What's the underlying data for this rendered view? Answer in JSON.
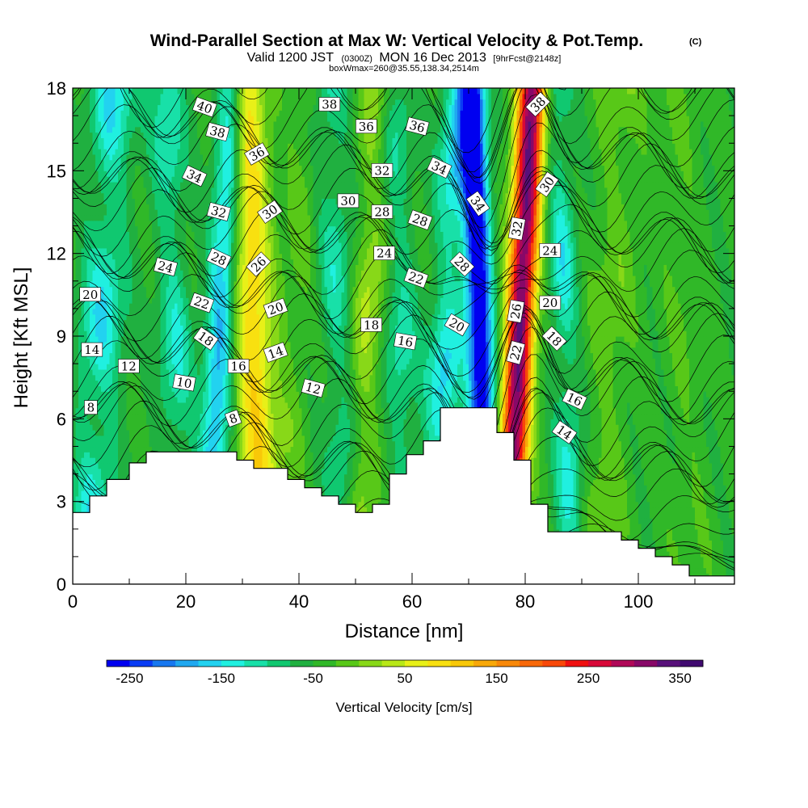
{
  "header": {
    "title": "Wind-Parallel Section at Max W: Vertical Velocity & Pot.Temp.",
    "copyright": "(C)",
    "valid_prefix": "Valid 1200 JST",
    "valid_zulu": "(0300Z)",
    "valid_date": "MON 16 Dec 2013",
    "forecast": "[9hrFcst@2148z]",
    "box_info": "boxWmax=260@35.55,138.34,2514m"
  },
  "chart_data": {
    "type": "heatmap",
    "xlabel": "Distance [nm]",
    "ylabel": "Height [Kft MSL]",
    "xlim": [
      0,
      117
    ],
    "ylim": [
      0,
      18
    ],
    "x_ticks": [
      "0",
      "20",
      "40",
      "60",
      "80",
      "100"
    ],
    "y_ticks": [
      "0",
      "3",
      "6",
      "9",
      "12",
      "15",
      "18"
    ],
    "x_tick_values": [
      0,
      20,
      40,
      60,
      80,
      100
    ],
    "y_tick_values": [
      0,
      3,
      6,
      9,
      12,
      15,
      18
    ],
    "colorbar": {
      "label": "Vertical Velocity [cm/s]",
      "tick_labels": [
        "-250",
        "-150",
        "-50",
        "50",
        "150",
        "250",
        "350"
      ],
      "tick_values": [
        -250,
        -150,
        -50,
        50,
        150,
        250,
        350
      ],
      "range": [
        -275,
        375
      ],
      "colors": [
        "#0000f0",
        "#0a3cf5",
        "#1878f0",
        "#20a8f0",
        "#22d2f0",
        "#20f0e0",
        "#18e0a8",
        "#10c870",
        "#20b040",
        "#30b828",
        "#58c818",
        "#88d818",
        "#b8e818",
        "#e8f018",
        "#f8e010",
        "#f8c808",
        "#f8a808",
        "#f88808",
        "#f86808",
        "#f84808",
        "#f01010",
        "#d80838",
        "#b00858",
        "#880868",
        "#58107a",
        "#400a70"
      ]
    },
    "velocity_field": {
      "background_cm_s": -45,
      "features": [
        {
          "x": 5,
          "width": 4,
          "w": -100
        },
        {
          "x": 18,
          "width": 3,
          "w": -80
        },
        {
          "x": 26,
          "width": 2.5,
          "w": -130
        },
        {
          "x": 32,
          "width": 3.5,
          "w": 140
        },
        {
          "x": 39,
          "width": 3,
          "w": 30
        },
        {
          "x": 47,
          "width": 3,
          "w": -70
        },
        {
          "x": 52,
          "width": 3,
          "w": 80
        },
        {
          "x": 58,
          "width": 3,
          "w": -70
        },
        {
          "x": 66,
          "width": 3,
          "w": -110
        },
        {
          "x": 72,
          "width": 2.2,
          "w": -250
        },
        {
          "x": 79,
          "width": 2.5,
          "w": 370
        },
        {
          "x": 87,
          "width": 2.5,
          "w": -90
        },
        {
          "x": 95,
          "width": 4,
          "w": 40
        },
        {
          "x": 108,
          "width": 4,
          "w": 20
        }
      ]
    },
    "terrain_kft": {
      "x": [
        0,
        3,
        3,
        6,
        6,
        10,
        10,
        13,
        13,
        17,
        17,
        29,
        29,
        32,
        32,
        38,
        38,
        41,
        41,
        44,
        44,
        47,
        47,
        50,
        50,
        53,
        53,
        56,
        56,
        59,
        59,
        62,
        62,
        65,
        65,
        69,
        69,
        75,
        75,
        78,
        78,
        81,
        81,
        84,
        84,
        97,
        97,
        100,
        100,
        103,
        103,
        106,
        106,
        109,
        109,
        114,
        114,
        117
      ],
      "y": [
        2.6,
        2.6,
        3.2,
        3.2,
        3.8,
        3.8,
        4.4,
        4.4,
        4.8,
        4.8,
        4.8,
        4.8,
        4.5,
        4.5,
        4.2,
        4.2,
        3.8,
        3.8,
        3.5,
        3.5,
        3.2,
        3.2,
        2.9,
        2.9,
        2.6,
        2.6,
        2.9,
        2.9,
        4.0,
        4.0,
        4.7,
        4.7,
        5.2,
        5.2,
        6.4,
        6.4,
        6.4,
        6.4,
        5.5,
        5.5,
        4.5,
        4.5,
        2.9,
        2.9,
        1.9,
        1.9,
        1.6,
        1.6,
        1.3,
        1.3,
        1.0,
        1.0,
        0.7,
        0.7,
        0.3,
        0.3,
        0.3,
        0.3
      ]
    },
    "theta_contours": {
      "levels_from": 1,
      "levels_to": 41,
      "step": 1,
      "label_boxes": [
        {
          "text": "40",
          "x": 23.3,
          "y": 17.3,
          "rot": 20
        },
        {
          "text": "38",
          "x": 45.4,
          "y": 17.4,
          "rot": 0
        },
        {
          "text": "38",
          "x": 82.3,
          "y": 17.4,
          "rot": -45
        },
        {
          "text": "38",
          "x": 25.6,
          "y": 16.4,
          "rot": 15
        },
        {
          "text": "36",
          "x": 32.6,
          "y": 15.6,
          "rot": -30
        },
        {
          "text": "36",
          "x": 51.9,
          "y": 16.6,
          "rot": 0
        },
        {
          "text": "36",
          "x": 60.9,
          "y": 16.6,
          "rot": 15
        },
        {
          "text": "34",
          "x": 21.5,
          "y": 14.8,
          "rot": 25
        },
        {
          "text": "34",
          "x": 64.8,
          "y": 15.1,
          "rot": 25
        },
        {
          "text": "34",
          "x": 71.6,
          "y": 13.8,
          "rot": 55
        },
        {
          "text": "32",
          "x": 54.7,
          "y": 15.0,
          "rot": 0
        },
        {
          "text": "32",
          "x": 25.8,
          "y": 13.5,
          "rot": 15
        },
        {
          "text": "30",
          "x": 34.9,
          "y": 13.5,
          "rot": -35
        },
        {
          "text": "30",
          "x": 48.7,
          "y": 13.9,
          "rot": 0
        },
        {
          "text": "30",
          "x": 83.9,
          "y": 14.5,
          "rot": -55
        },
        {
          "text": "28",
          "x": 54.7,
          "y": 13.5,
          "rot": 0
        },
        {
          "text": "28",
          "x": 61.4,
          "y": 13.2,
          "rot": 20
        },
        {
          "text": "28",
          "x": 25.8,
          "y": 11.8,
          "rot": 25
        },
        {
          "text": "28",
          "x": 68.8,
          "y": 11.6,
          "rot": 45
        },
        {
          "text": "32",
          "x": 78.6,
          "y": 12.9,
          "rot": -80
        },
        {
          "text": "26",
          "x": 32.9,
          "y": 11.6,
          "rot": -45
        },
        {
          "text": "24",
          "x": 16.4,
          "y": 11.5,
          "rot": 15
        },
        {
          "text": "24",
          "x": 55.1,
          "y": 12.0,
          "rot": 0
        },
        {
          "text": "24",
          "x": 84.4,
          "y": 12.1,
          "rot": 0
        },
        {
          "text": "22",
          "x": 60.7,
          "y": 11.1,
          "rot": 20
        },
        {
          "text": "22",
          "x": 22.8,
          "y": 10.2,
          "rot": 20
        },
        {
          "text": "20",
          "x": 3.1,
          "y": 10.5,
          "rot": 0
        },
        {
          "text": "20",
          "x": 35.9,
          "y": 10.0,
          "rot": -20
        },
        {
          "text": "20",
          "x": 67.9,
          "y": 9.4,
          "rot": 30
        },
        {
          "text": "20",
          "x": 84.4,
          "y": 10.2,
          "rot": 0
        },
        {
          "text": "26",
          "x": 78.4,
          "y": 9.9,
          "rot": -80
        },
        {
          "text": "18",
          "x": 52.8,
          "y": 9.4,
          "rot": 0
        },
        {
          "text": "18",
          "x": 23.5,
          "y": 8.9,
          "rot": 35
        },
        {
          "text": "18",
          "x": 85.1,
          "y": 8.9,
          "rot": 45
        },
        {
          "text": "16",
          "x": 58.8,
          "y": 8.8,
          "rot": 10
        },
        {
          "text": "14",
          "x": 3.4,
          "y": 8.5,
          "rot": 0
        },
        {
          "text": "14",
          "x": 35.9,
          "y": 8.4,
          "rot": -20
        },
        {
          "text": "22",
          "x": 78.4,
          "y": 8.4,
          "rot": -75
        },
        {
          "text": "12",
          "x": 9.9,
          "y": 7.9,
          "rot": 0
        },
        {
          "text": "16",
          "x": 29.3,
          "y": 7.9,
          "rot": 0
        },
        {
          "text": "10",
          "x": 19.7,
          "y": 7.3,
          "rot": 10
        },
        {
          "text": "12",
          "x": 42.5,
          "y": 7.1,
          "rot": 15
        },
        {
          "text": "16",
          "x": 88.7,
          "y": 6.7,
          "rot": 25
        },
        {
          "text": "8",
          "x": 3.2,
          "y": 6.4,
          "rot": 0
        },
        {
          "text": "8",
          "x": 28.4,
          "y": 6.0,
          "rot": -20
        },
        {
          "text": "14",
          "x": 86.9,
          "y": 5.5,
          "rot": 35
        }
      ]
    }
  }
}
